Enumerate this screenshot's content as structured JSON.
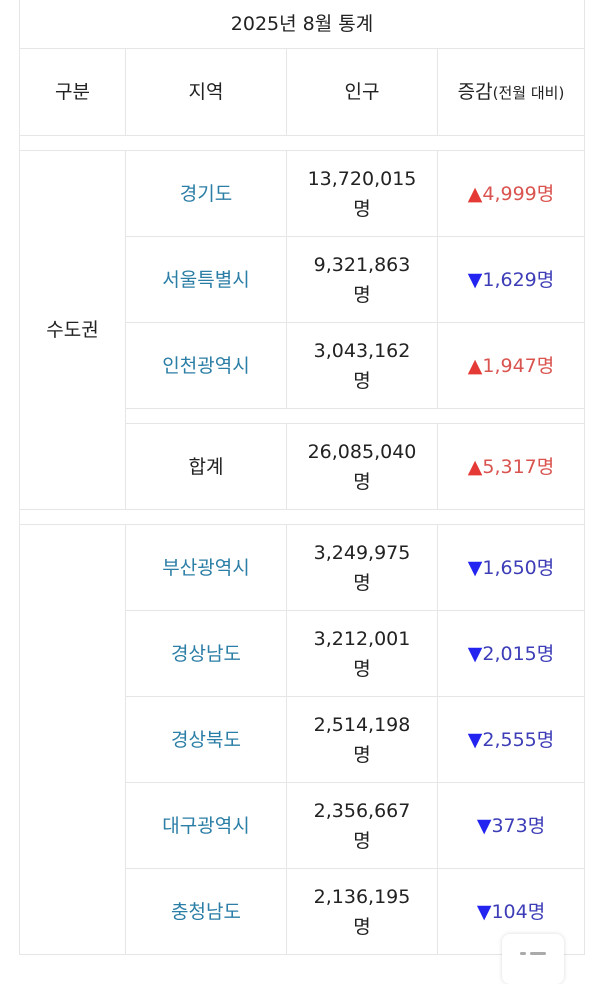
{
  "table": {
    "title": "2025년 8월 통계",
    "headers": {
      "category": "구분",
      "region": "지역",
      "population": "인구",
      "change": "증감",
      "change_note": "(전월 대비)"
    },
    "groups": [
      {
        "name": "수도권",
        "rows": [
          {
            "region": "경기도",
            "population": "13,720,015",
            "unit": "명",
            "direction": "up",
            "arrow": "▲",
            "change": "4,999명"
          },
          {
            "region": "서울특별시",
            "population": "9,321,863",
            "unit": "명",
            "direction": "down",
            "arrow": "▼",
            "change": "1,629명"
          },
          {
            "region": "인천광역시",
            "population": "3,043,162",
            "unit": "명",
            "direction": "up",
            "arrow": "▲",
            "change": "1,947명"
          }
        ],
        "total": {
          "region": "합계",
          "population": "26,085,040",
          "unit": "명",
          "direction": "up",
          "arrow": "▲",
          "change": "5,317명"
        }
      },
      {
        "name": "",
        "rows": [
          {
            "region": "부산광역시",
            "population": "3,249,975",
            "unit": "명",
            "direction": "down",
            "arrow": "▼",
            "change": "1,650명"
          },
          {
            "region": "경상남도",
            "population": "3,212,001",
            "unit": "명",
            "direction": "down",
            "arrow": "▼",
            "change": "2,015명"
          },
          {
            "region": "경상북도",
            "population": "2,514,198",
            "unit": "명",
            "direction": "down",
            "arrow": "▼",
            "change": "2,555명"
          },
          {
            "region": "대구광역시",
            "population": "2,356,667",
            "unit": "명",
            "direction": "down",
            "arrow": "▼",
            "change": "373명"
          },
          {
            "region": "충청남도",
            "population": "2,136,195",
            "unit": "명",
            "direction": "down",
            "arrow": "▼",
            "change": "104명"
          }
        ]
      }
    ]
  },
  "colors": {
    "region_link": "#2b7ea6",
    "increase": "#d9534f",
    "decrease": "#3d3db8",
    "border": "#e6e6e6"
  },
  "fab": {
    "icon": "list-icon"
  }
}
